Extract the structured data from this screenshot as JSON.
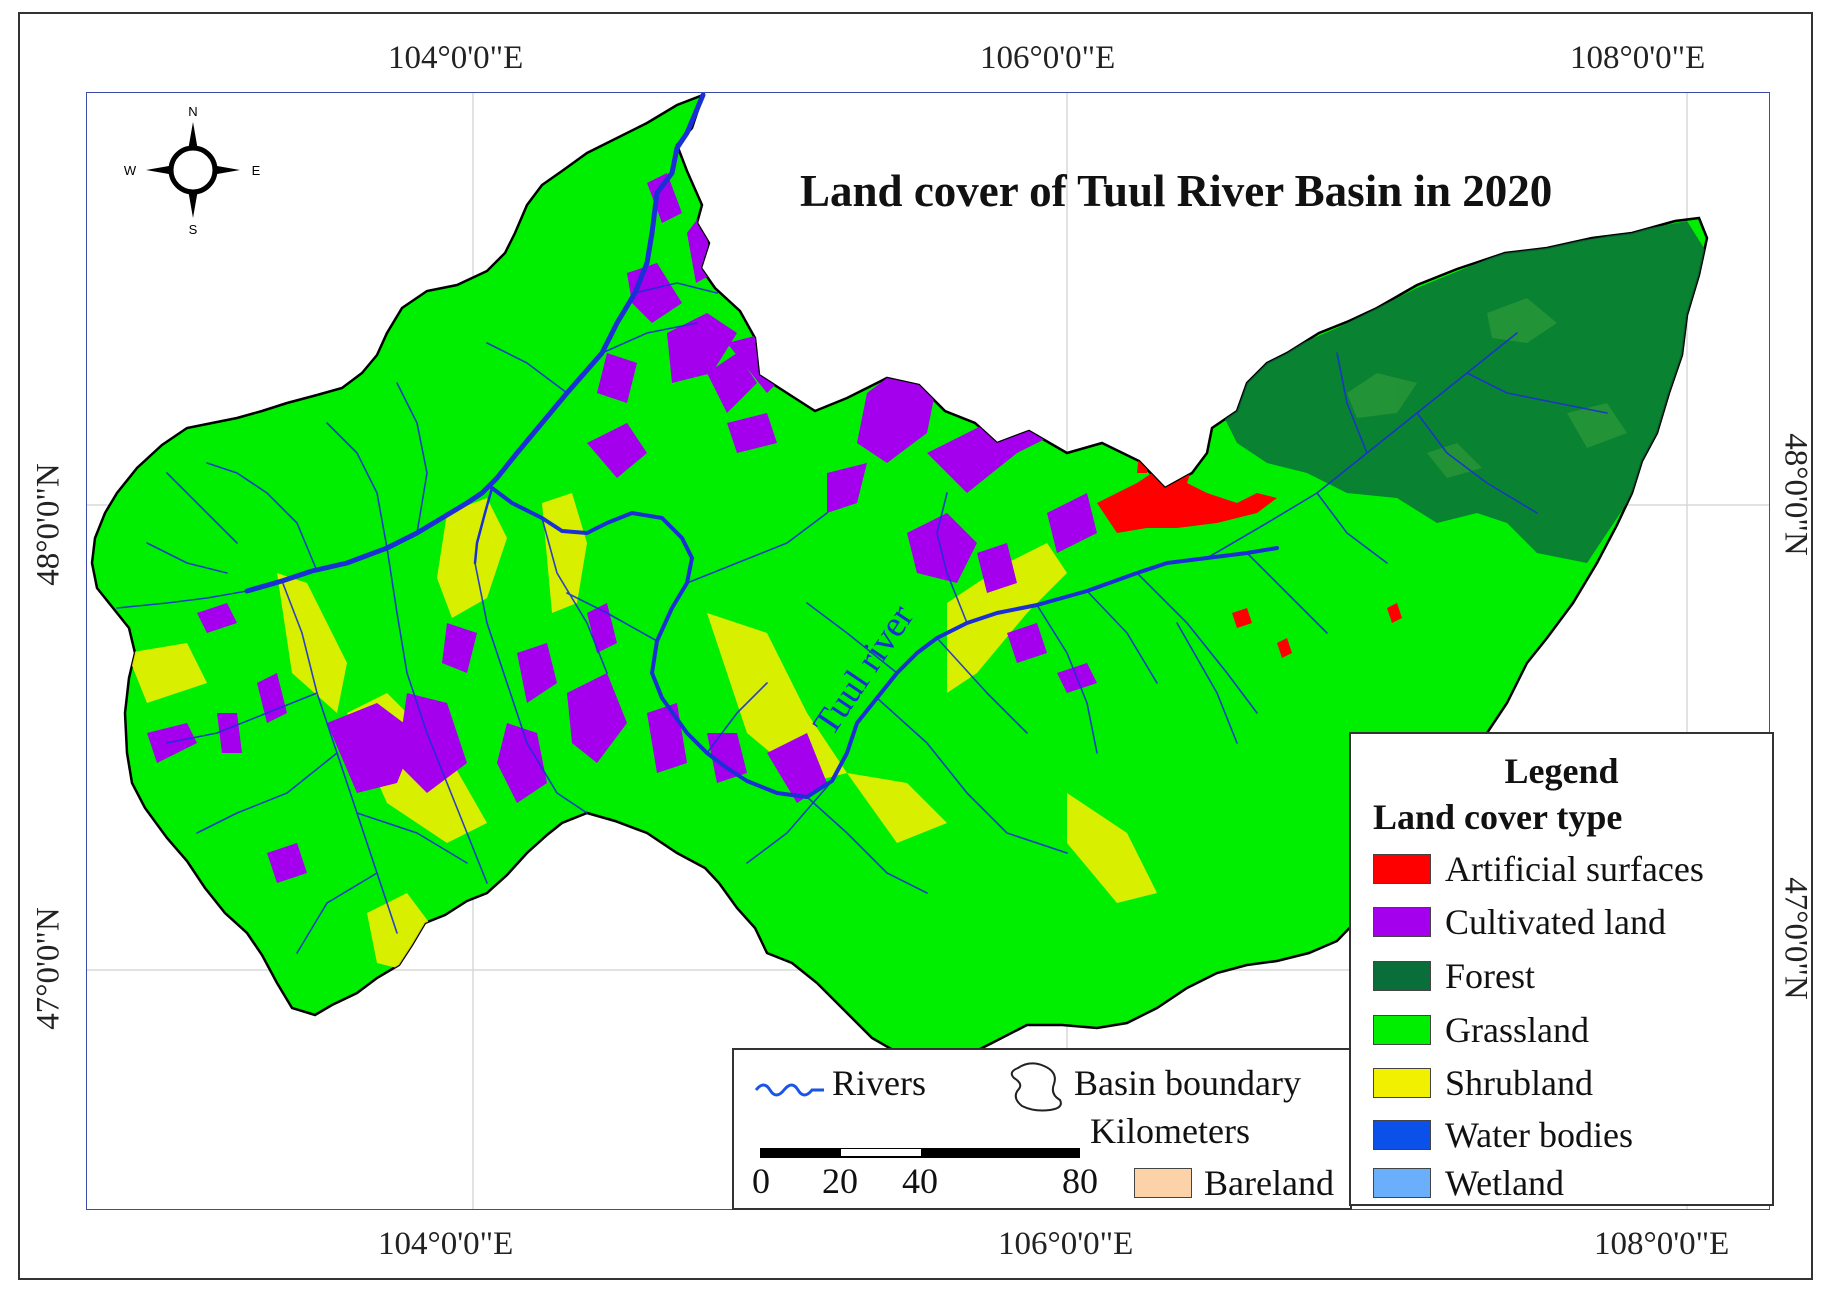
{
  "map": {
    "title": "Land cover of Tuul River Basin in 2020",
    "river_label": "Tuul river",
    "graticule": {
      "top": [
        "104°0'0\"E",
        "106°0'0\"E",
        "108°0'0\"E"
      ],
      "bottom": [
        "104°0'0\"E",
        "106°0'0\"E",
        "108°0'0\"E"
      ],
      "left": [
        "48°0'0\"N",
        "47°0'0\"N"
      ],
      "right": [
        "48°0'0\"N",
        "47°0'0\"N"
      ]
    },
    "compass": {
      "n": "N",
      "s": "S",
      "e": "E",
      "w": "W",
      "icon": "north-arrow-compass-icon"
    },
    "colors": {
      "grassland": "#00ee00",
      "forest": "#0a6e3a",
      "shrubland": "#f0f000",
      "cultivated": "#a400ee",
      "artificial": "#ff0000",
      "water": "#0b3fe0",
      "wetland": "#6aaefc",
      "bareland": "#fcd3a8",
      "frame_blue": "#3b4aa8"
    }
  },
  "legend": {
    "heading": "Legend",
    "subheading": "Land cover type",
    "items": [
      {
        "label": "Artificial surfaces",
        "color": "#ff0000"
      },
      {
        "label": "Cultivated land",
        "color": "#a400ee"
      },
      {
        "label": "Forest",
        "color": "#0a6e3a"
      },
      {
        "label": "Grassland",
        "color": "#00ee00"
      },
      {
        "label": "Shrubland",
        "color": "#f0f000"
      },
      {
        "label": "Water bodies",
        "color": "#0b50e8"
      },
      {
        "label": "Wetland",
        "color": "#6aaefc"
      }
    ],
    "rivers_label": "Rivers",
    "basin_label": "Basin boundary",
    "bareland_label": "Bareland",
    "bareland_color": "#fcd3a8",
    "scalebar": {
      "unit": "Kilometers",
      "ticks": [
        "0",
        "20",
        "40",
        "80"
      ]
    }
  }
}
